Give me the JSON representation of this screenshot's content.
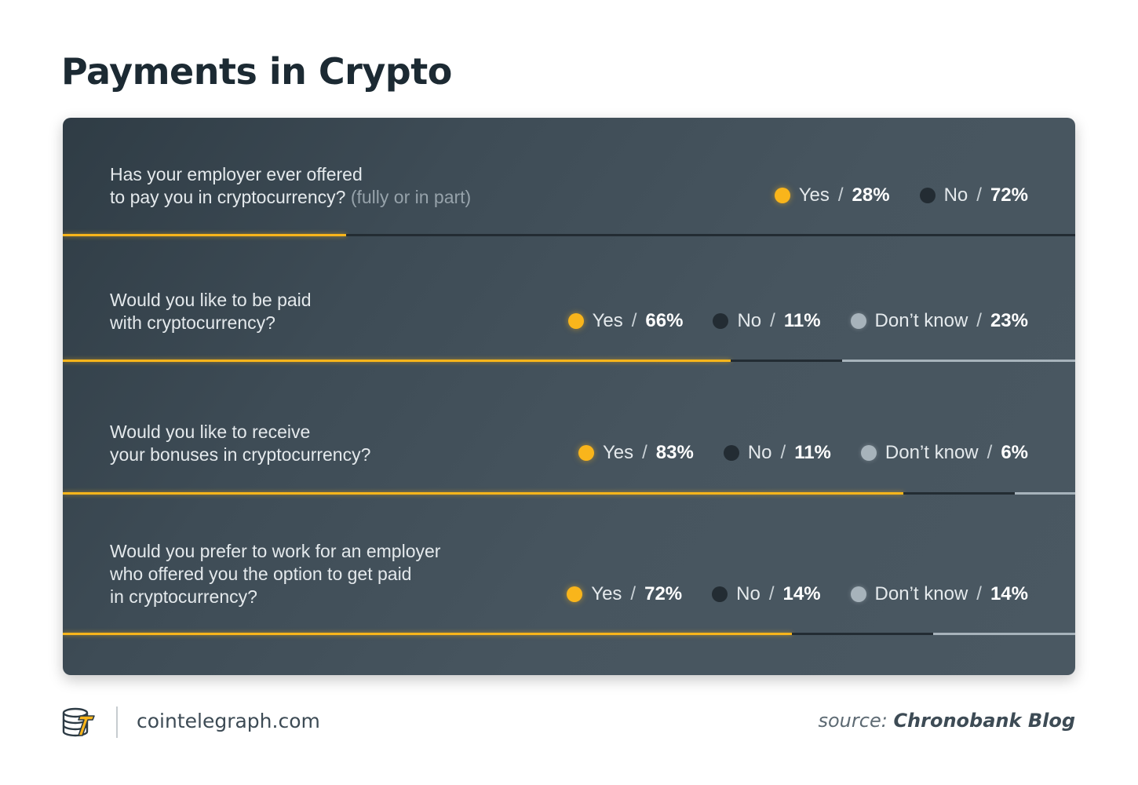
{
  "header": {
    "title": "Payments in Crypto"
  },
  "colors": {
    "yes": "#f9b51b",
    "no": "#232c33",
    "dont_know": "#a7b3bb"
  },
  "chart_data": {
    "type": "bar",
    "subtype": "stacked-horizontal",
    "questions": [
      {
        "text_lines": [
          "Has your employer ever offered",
          "to pay you in cryptocurrency?"
        ],
        "text_note": "(fully or in part)",
        "responses": [
          {
            "label": "Yes",
            "value": 28,
            "value_text": "28%",
            "color_key": "yes"
          },
          {
            "label": "No",
            "value": 72,
            "value_text": "72%",
            "color_key": "no"
          }
        ]
      },
      {
        "text_lines": [
          "Would you like to be paid",
          "with cryptocurrency?"
        ],
        "text_note": "",
        "responses": [
          {
            "label": "Yes",
            "value": 66,
            "value_text": "66%",
            "color_key": "yes"
          },
          {
            "label": "No",
            "value": 11,
            "value_text": "11%",
            "color_key": "no"
          },
          {
            "label": "Don’t know",
            "value": 23,
            "value_text": "23%",
            "color_key": "dont_know"
          }
        ]
      },
      {
        "text_lines": [
          "Would you like to receive",
          "your bonuses in cryptocurrency?"
        ],
        "text_note": "",
        "responses": [
          {
            "label": "Yes",
            "value": 83,
            "value_text": "83%",
            "color_key": "yes"
          },
          {
            "label": "No",
            "value": 11,
            "value_text": "11%",
            "color_key": "no"
          },
          {
            "label": "Don’t know",
            "value": 6,
            "value_text": "6%",
            "color_key": "dont_know"
          }
        ]
      },
      {
        "text_lines": [
          "Would you prefer to work for an employer",
          "who offered you the option to get paid",
          "in cryptocurrency?"
        ],
        "text_note": "",
        "responses": [
          {
            "label": "Yes",
            "value": 72,
            "value_text": "72%",
            "color_key": "yes"
          },
          {
            "label": "No",
            "value": 14,
            "value_text": "14%",
            "color_key": "no"
          },
          {
            "label": "Don’t know",
            "value": 14,
            "value_text": "14%",
            "color_key": "dont_know"
          }
        ]
      }
    ]
  },
  "footer": {
    "logo_icon": "cointelegraph-logo-icon",
    "site": "cointelegraph.com",
    "source_prefix": "source:",
    "source_name": "Chronobank Blog"
  }
}
